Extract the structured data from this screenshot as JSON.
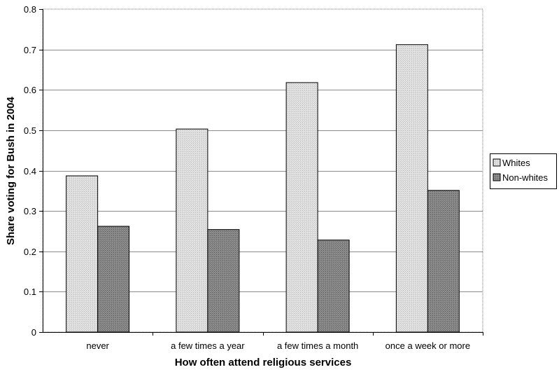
{
  "chart_data": {
    "type": "bar",
    "title": "",
    "xlabel": "How often attend religious services",
    "ylabel": "Share voting for Bush in 2004",
    "categories": [
      "never",
      "a few times a year",
      "a few times a month",
      "once a week or more"
    ],
    "series": [
      {
        "name": "Whites",
        "values": [
          0.387,
          0.503,
          0.618,
          0.712
        ],
        "color": "#d4d4d4"
      },
      {
        "name": "Non-whites",
        "values": [
          0.262,
          0.254,
          0.228,
          0.351
        ],
        "color": "#8a8a8a"
      }
    ],
    "ylim": [
      0,
      0.8
    ],
    "yticks": [
      "0",
      "0.1",
      "0.2",
      "0.3",
      "0.4",
      "0.5",
      "0.6",
      "0.7",
      "0.8"
    ],
    "grid": true,
    "legend_position": "right"
  }
}
